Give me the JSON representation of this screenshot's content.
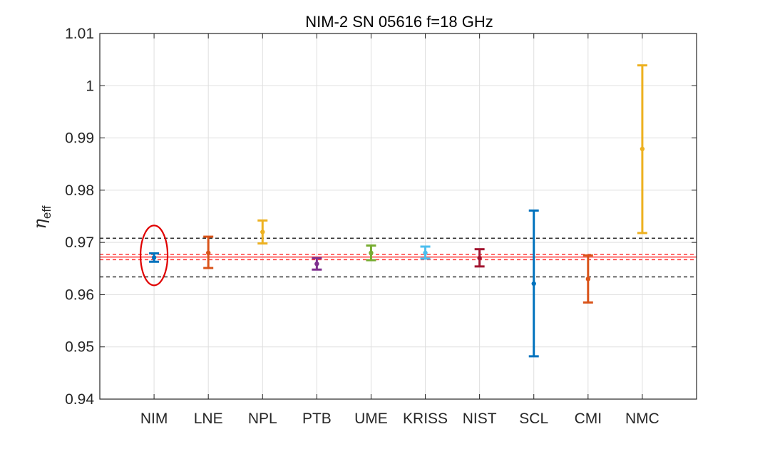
{
  "chart_data": {
    "type": "errorbar",
    "title": "NIM-2  SN 05616  f=18 GHz",
    "ylabel": "η",
    "ylabel_subscript": "eff",
    "xlabel": "",
    "ylim": [
      0.94,
      1.01
    ],
    "yticks": [
      "0.94",
      "0.95",
      "0.96",
      "0.97",
      "0.98",
      "0.99",
      "1",
      "1.01"
    ],
    "ytick_values": [
      0.94,
      0.95,
      0.96,
      0.97,
      0.98,
      0.99,
      1.0,
      1.01
    ],
    "grid": true,
    "categories": [
      "NIM",
      "LNE",
      "NPL",
      "PTB",
      "UME",
      "KRISS",
      "NIST",
      "SCL",
      "CMI",
      "NMC"
    ],
    "values": [
      0.9671,
      0.968,
      0.972,
      0.9659,
      0.968,
      0.968,
      0.967,
      0.9621,
      0.963,
      0.9879
    ],
    "lower": [
      0.9663,
      0.9651,
      0.9698,
      0.9648,
      0.9666,
      0.9669,
      0.9654,
      0.9482,
      0.9585,
      0.9718
    ],
    "upper": [
      0.9679,
      0.9711,
      0.9742,
      0.967,
      0.9694,
      0.9692,
      0.9687,
      0.9761,
      0.9675,
      1.0039
    ],
    "colors": [
      "#0072BD",
      "#D95319",
      "#EDB120",
      "#7E2F8E",
      "#77AC30",
      "#4DBEEE",
      "#A2142F",
      "#0072BD",
      "#D95319",
      "#EDB120"
    ],
    "reference_lines": [
      {
        "y": 0.9672,
        "style": "solid",
        "color": "#FF6F6F"
      },
      {
        "y": 0.9677,
        "style": "dashed",
        "color": "#FF3C3C"
      },
      {
        "y": 0.9667,
        "style": "dashed",
        "color": "#FF3C3C"
      },
      {
        "y": 0.9708,
        "style": "dashed",
        "color": "#333333"
      },
      {
        "y": 0.9634,
        "style": "dashed",
        "color": "#333333"
      }
    ],
    "highlight": {
      "category": "NIM",
      "shape": "ellipse",
      "color": "#E00000"
    }
  }
}
